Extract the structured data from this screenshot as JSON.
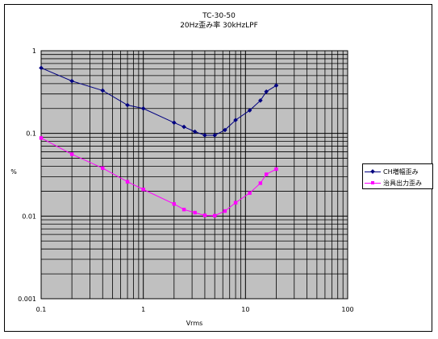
{
  "chart_data": {
    "type": "line",
    "title": "TC-30-50",
    "subtitle": "20Hz歪み率 30kHzLPF",
    "xlabel": "Vrms",
    "ylabel": "%",
    "x_scale": "log",
    "y_scale": "log",
    "xlim": [
      0.1,
      100
    ],
    "ylim": [
      0.001,
      1
    ],
    "x_ticks": [
      "0.1",
      "1",
      "10",
      "100"
    ],
    "y_ticks": [
      "1",
      "0.1",
      "0.01",
      "0.001"
    ],
    "grid": true,
    "legend_position": "right",
    "plot_background": "#c0c0c0",
    "series": [
      {
        "name": "CH増幅歪み",
        "color": "#000080",
        "marker": "diamond",
        "x": [
          0.1,
          0.2,
          0.4,
          0.7,
          1,
          2,
          2.5,
          3.2,
          4,
          5,
          6.3,
          8,
          11,
          14,
          16,
          20
        ],
        "y": [
          0.62,
          0.43,
          0.33,
          0.22,
          0.2,
          0.135,
          0.12,
          0.105,
          0.095,
          0.095,
          0.11,
          0.145,
          0.19,
          0.25,
          0.32,
          0.38
        ]
      },
      {
        "name": "治具出力歪み",
        "color": "#ff00ff",
        "marker": "square",
        "x": [
          0.1,
          0.2,
          0.4,
          0.7,
          1,
          2,
          2.5,
          3.2,
          4,
          5,
          6.3,
          8,
          11,
          14,
          16,
          20
        ],
        "y": [
          0.088,
          0.056,
          0.038,
          0.026,
          0.021,
          0.014,
          0.012,
          0.011,
          0.0102,
          0.0101,
          0.0115,
          0.0145,
          0.019,
          0.025,
          0.032,
          0.037
        ]
      }
    ]
  }
}
